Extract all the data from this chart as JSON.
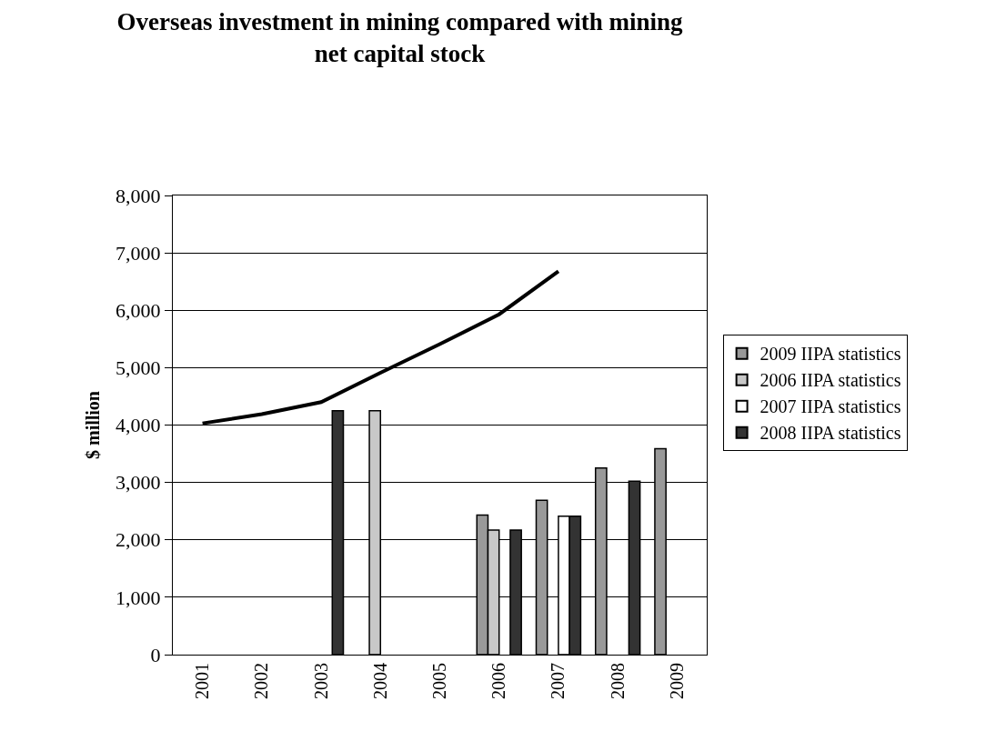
{
  "chart_data": {
    "type": "bar",
    "title": "Overseas investment in mining compared with mining net capital stock",
    "ylabel": "$ million",
    "categories": [
      "2001",
      "2002",
      "2003",
      "2004",
      "2005",
      "2006",
      "2007",
      "2008",
      "2009"
    ],
    "series": [
      {
        "name": "2009 IIPA statistics",
        "color": "#999999",
        "values": [
          null,
          null,
          null,
          null,
          null,
          2430,
          2690,
          3250,
          3590
        ]
      },
      {
        "name": "2006 IIPA statistics",
        "color": "#c8c8c8",
        "values": [
          null,
          null,
          null,
          4250,
          null,
          2170,
          null,
          null,
          null
        ]
      },
      {
        "name": "2007 IIPA statistics",
        "color": "#ffffff",
        "values": [
          null,
          null,
          null,
          null,
          null,
          null,
          2410,
          null,
          null
        ]
      },
      {
        "name": "2008 IIPA statistics",
        "color": "#333333",
        "values": [
          null,
          null,
          4250,
          null,
          null,
          2170,
          2410,
          3020,
          null
        ]
      },
      {
        "type": "line",
        "color": "#000000",
        "values": [
          4030,
          4190,
          4400,
          4910,
          5410,
          5930,
          6680,
          null,
          null
        ]
      }
    ],
    "ylim": [
      0,
      8000
    ],
    "yticks": [
      {
        "value": 0,
        "label": "0"
      },
      {
        "value": 1000,
        "label": "1,000"
      },
      {
        "value": 2000,
        "label": "2,000"
      },
      {
        "value": 3000,
        "label": "3,000"
      },
      {
        "value": 4000,
        "label": "4,000"
      },
      {
        "value": 5000,
        "label": "5,000"
      },
      {
        "value": 6000,
        "label": "6,000"
      },
      {
        "value": 7000,
        "label": "7,000"
      },
      {
        "value": 8000,
        "label": "8,000"
      }
    ],
    "grid": "y",
    "legend": "right",
    "marker": "none",
    "line_style": "solid"
  }
}
